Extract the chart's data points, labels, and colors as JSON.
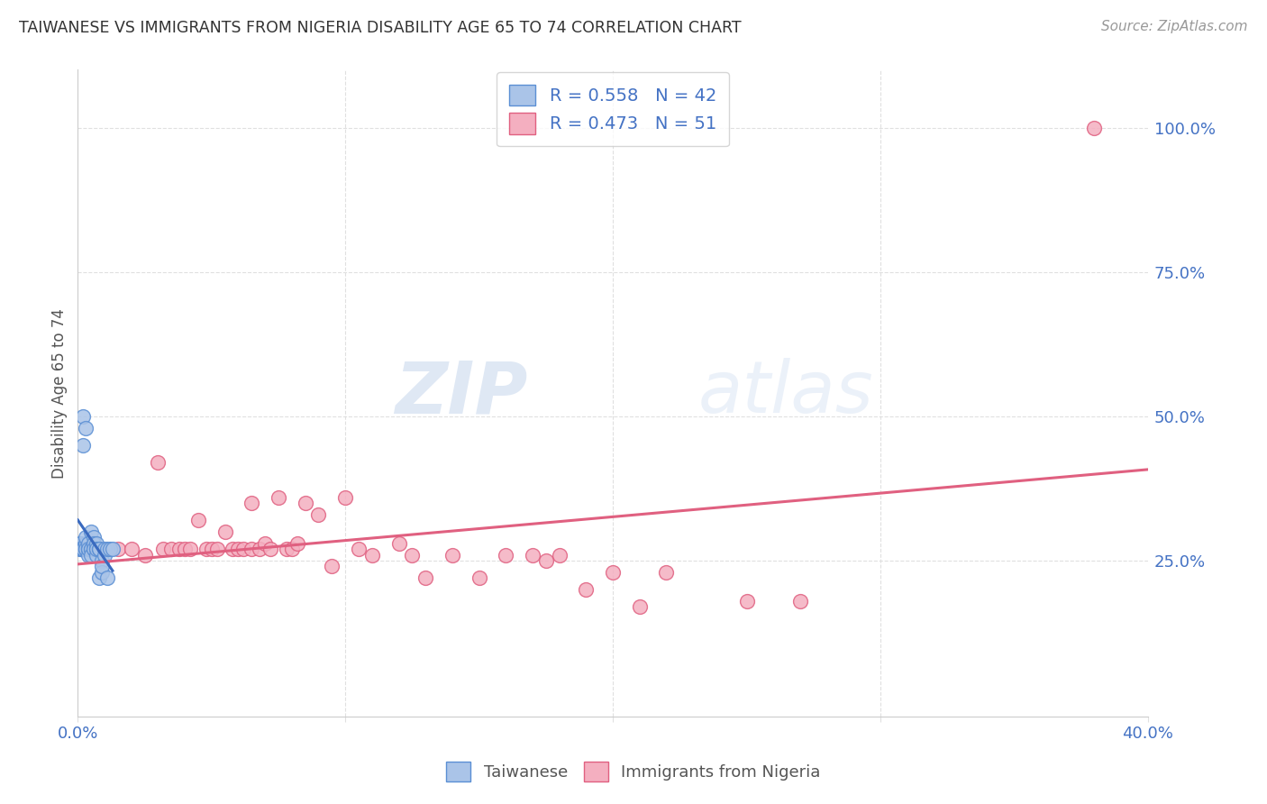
{
  "title": "TAIWANESE VS IMMIGRANTS FROM NIGERIA DISABILITY AGE 65 TO 74 CORRELATION CHART",
  "source": "Source: ZipAtlas.com",
  "ylabel": "Disability Age 65 to 74",
  "xlim": [
    0.0,
    0.4
  ],
  "ylim": [
    -0.02,
    1.1
  ],
  "xtick_positions": [
    0.0,
    0.1,
    0.2,
    0.3,
    0.4
  ],
  "xtick_labels": [
    "0.0%",
    "",
    "",
    "",
    "40.0%"
  ],
  "ytick_positions": [
    0.0,
    0.25,
    0.5,
    0.75,
    1.0
  ],
  "ytick_labels": [
    "",
    "25.0%",
    "50.0%",
    "75.0%",
    "100.0%"
  ],
  "taiwanese_color": "#aac4e8",
  "nigerian_color": "#f4afc0",
  "taiwanese_edge": "#5b8fd4",
  "nigerian_edge": "#e06080",
  "trendline_taiwanese_color": "#3a6abf",
  "trendline_nigerian_color": "#e06080",
  "legend_color": "#4472c4",
  "watermark_zip": "ZIP",
  "watermark_atlas": "atlas",
  "R_taiwanese": 0.558,
  "N_taiwanese": 42,
  "R_nigerian": 0.473,
  "N_nigerian": 51,
  "taiwanese_x": [
    0.001,
    0.001,
    0.001,
    0.001,
    0.002,
    0.002,
    0.002,
    0.002,
    0.003,
    0.003,
    0.003,
    0.003,
    0.003,
    0.004,
    0.004,
    0.004,
    0.004,
    0.004,
    0.005,
    0.005,
    0.005,
    0.005,
    0.006,
    0.006,
    0.006,
    0.006,
    0.007,
    0.007,
    0.007,
    0.007,
    0.008,
    0.008,
    0.008,
    0.009,
    0.009,
    0.009,
    0.01,
    0.01,
    0.011,
    0.011,
    0.012,
    0.013
  ],
  "taiwanese_y": [
    0.27,
    0.28,
    0.28,
    0.27,
    0.45,
    0.5,
    0.27,
    0.27,
    0.48,
    0.27,
    0.28,
    0.29,
    0.27,
    0.27,
    0.27,
    0.28,
    0.26,
    0.27,
    0.3,
    0.27,
    0.27,
    0.26,
    0.27,
    0.29,
    0.28,
    0.27,
    0.27,
    0.28,
    0.26,
    0.27,
    0.27,
    0.27,
    0.22,
    0.25,
    0.23,
    0.24,
    0.27,
    0.26,
    0.27,
    0.22,
    0.27,
    0.27
  ],
  "nigerian_x": [
    0.005,
    0.005,
    0.008,
    0.015,
    0.02,
    0.025,
    0.03,
    0.032,
    0.035,
    0.038,
    0.04,
    0.042,
    0.045,
    0.048,
    0.05,
    0.052,
    0.055,
    0.058,
    0.06,
    0.062,
    0.065,
    0.065,
    0.068,
    0.07,
    0.072,
    0.075,
    0.078,
    0.08,
    0.082,
    0.085,
    0.09,
    0.095,
    0.1,
    0.105,
    0.11,
    0.12,
    0.125,
    0.13,
    0.14,
    0.15,
    0.16,
    0.17,
    0.175,
    0.18,
    0.19,
    0.2,
    0.21,
    0.22,
    0.25,
    0.27,
    0.38
  ],
  "nigerian_y": [
    0.27,
    0.27,
    0.27,
    0.27,
    0.27,
    0.26,
    0.42,
    0.27,
    0.27,
    0.27,
    0.27,
    0.27,
    0.32,
    0.27,
    0.27,
    0.27,
    0.3,
    0.27,
    0.27,
    0.27,
    0.27,
    0.35,
    0.27,
    0.28,
    0.27,
    0.36,
    0.27,
    0.27,
    0.28,
    0.35,
    0.33,
    0.24,
    0.36,
    0.27,
    0.26,
    0.28,
    0.26,
    0.22,
    0.26,
    0.22,
    0.26,
    0.26,
    0.25,
    0.26,
    0.2,
    0.23,
    0.17,
    0.23,
    0.18,
    0.18,
    1.0
  ],
  "background_color": "#ffffff",
  "grid_color": "#e0e0e0",
  "title_color": "#333333",
  "tick_color": "#4472c4",
  "label_color": "#555555"
}
